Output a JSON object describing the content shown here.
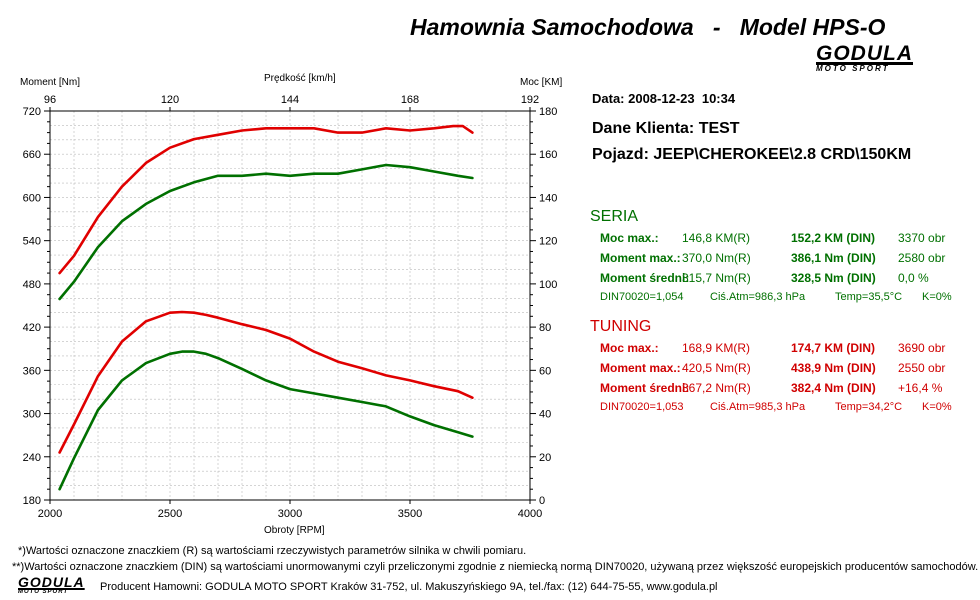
{
  "header": {
    "title": "Hamownia Samochodowa   -   Model HPS-O",
    "logo_main": "GODULA",
    "logo_sub": "MOTO SPORT"
  },
  "info": {
    "date": "Data: 2008-12-23  10:34",
    "client": "Dane Klienta: TEST",
    "vehicle": "Pojazd: JEEP\\CHEROKEE\\2.8 CRD\\150KM"
  },
  "seria": {
    "title": "SERIA",
    "rows": [
      {
        "label": "Moc max.:",
        "r": "146,8 KM(R)",
        "din": "152,2 KM (DIN)",
        "rpm": "3370 obr"
      },
      {
        "label": "Moment max.:",
        "r": "370,0 Nm(R)",
        "din": "386,1 Nm (DIN)",
        "rpm": "2580 obr"
      },
      {
        "label": "Moment średni:",
        "r": "315,7 Nm(R)",
        "din": "328,5 Nm (DIN)",
        "rpm": "0,0 %"
      }
    ],
    "conditions": {
      "din": "DIN70020=1,054",
      "atm": "Ciś.Atm=986,3 hPa",
      "temp": "Temp=35,5°C",
      "k": "K=0%"
    }
  },
  "tuning": {
    "title": "TUNING",
    "rows": [
      {
        "label": "Moc max.:",
        "r": "168,9 KM(R)",
        "din": "174,7 KM (DIN)",
        "rpm": "3690 obr"
      },
      {
        "label": "Moment max.:",
        "r": "420,5 Nm(R)",
        "din": "438,9 Nm (DIN)",
        "rpm": "2550 obr"
      },
      {
        "label": "Moment średni:",
        "r": "367,2 Nm(R)",
        "din": "382,4 Nm (DIN)",
        "rpm": "+16,4 %"
      }
    ],
    "conditions": {
      "din": "DIN70020=1,053",
      "atm": "Ciś.Atm=985,3 hPa",
      "temp": "Temp=34,2°C",
      "k": "K=0%"
    }
  },
  "notes": {
    "note1": "*)Wartości oznaczone znaczkiem (R) są wartościami rzeczywistych parametrów silnika w chwili pomiaru.",
    "note2": "**)Wartości oznaczone znaczkiem (DIN) są wartościami unormowanymi czyli przeliczonymi zgodnie z niemiecką normą DIN70020, używaną przez większość europejskich producentów samochodów.",
    "producer": "Producent Hamowni: GODULA MOTO SPORT Kraków 31-752, ul. Makuszyńskiego 9A, tel./fax: (12) 644-75-55, www.godula.pl"
  },
  "colors": {
    "seria": "#007000",
    "tuning": "#e00000"
  },
  "chart_data": {
    "type": "line",
    "xlabel": "Obroty [RPM]",
    "ylabel_left": "Moment [Nm]",
    "ylabel_right": "Moc [KM]",
    "top_axis_label": "Prędkość [km/h]",
    "xlim": [
      2000,
      4000
    ],
    "ylim_left": [
      180,
      720
    ],
    "ylim_right": [
      0,
      180
    ],
    "top_axis_range": [
      96,
      192
    ],
    "x_ticks": [
      2000,
      2500,
      3000,
      3500,
      4000
    ],
    "left_ticks": [
      180,
      240,
      300,
      360,
      420,
      480,
      540,
      600,
      660,
      720
    ],
    "right_ticks": [
      0,
      20,
      40,
      60,
      80,
      100,
      120,
      140,
      160,
      180
    ],
    "top_ticks": [
      96,
      120,
      144,
      168,
      192
    ],
    "grid": true,
    "series": [
      {
        "color": "#e00000",
        "axis": "left",
        "x": [
          2040,
          2100,
          2200,
          2300,
          2400,
          2500,
          2550,
          2600,
          2650,
          2700,
          2800,
          2900,
          3000,
          3100,
          3200,
          3300,
          3400,
          3500,
          3600,
          3700,
          3760
        ],
        "y": [
          246,
          285,
          352,
          400,
          428,
          440,
          441,
          440,
          437,
          433,
          424,
          416,
          404,
          386,
          372,
          363,
          353,
          346,
          338,
          331,
          322
        ]
      },
      {
        "color": "#e00000",
        "axis": "right",
        "x": [
          2040,
          2100,
          2200,
          2300,
          2400,
          2500,
          2600,
          2700,
          2800,
          2900,
          3000,
          3100,
          3200,
          3300,
          3400,
          3500,
          3600,
          3680,
          3720,
          3760
        ],
        "y": [
          105,
          113,
          131,
          145,
          156,
          163,
          167,
          169,
          171,
          172,
          172,
          172,
          170,
          170,
          172,
          171,
          172,
          173,
          173,
          170
        ]
      },
      {
        "color": "#007000",
        "axis": "left",
        "x": [
          2040,
          2100,
          2200,
          2300,
          2400,
          2500,
          2550,
          2600,
          2650,
          2700,
          2800,
          2900,
          3000,
          3100,
          3200,
          3300,
          3400,
          3500,
          3600,
          3700,
          3760
        ],
        "y": [
          195,
          238,
          305,
          346,
          370,
          383,
          386,
          386,
          383,
          377,
          362,
          346,
          334,
          328,
          322,
          316,
          310,
          296,
          284,
          274,
          268
        ]
      },
      {
        "color": "#007000",
        "axis": "right",
        "x": [
          2040,
          2100,
          2200,
          2300,
          2400,
          2500,
          2600,
          2700,
          2800,
          2900,
          3000,
          3100,
          3200,
          3300,
          3400,
          3500,
          3600,
          3700,
          3760
        ],
        "y": [
          93,
          101,
          117,
          129,
          137,
          143,
          147,
          150,
          150,
          151,
          150,
          151,
          151,
          153,
          155,
          154,
          152,
          150,
          149
        ]
      }
    ]
  }
}
